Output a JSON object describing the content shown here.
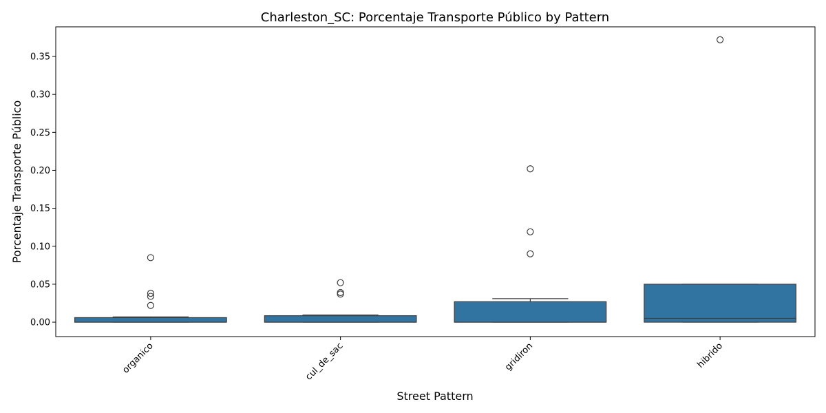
{
  "chart_data": {
    "type": "box",
    "title": "Charleston_SC: Porcentaje Transporte Público by Pattern",
    "xlabel": "Street Pattern",
    "ylabel": "Porcentaje Transporte Público",
    "ylim": [
      -0.019,
      0.389
    ],
    "yticks": [
      0.0,
      0.05,
      0.1,
      0.15,
      0.2,
      0.25,
      0.3,
      0.35
    ],
    "ytick_labels": [
      "0.00",
      "0.05",
      "0.10",
      "0.15",
      "0.20",
      "0.25",
      "0.30",
      "0.35"
    ],
    "box_color": "#3274a1",
    "edge_color": "#3d3d3d",
    "categories": [
      "organico",
      "cul_de_sac",
      "gridiron",
      "hibrido"
    ],
    "boxes": [
      {
        "category": "organico",
        "whisker_low": 0.0,
        "q1": 0.0,
        "median": 0.0,
        "q3": 0.006,
        "whisker_high": 0.007,
        "outliers": [
          0.085,
          0.038,
          0.034,
          0.022
        ]
      },
      {
        "category": "cul_de_sac",
        "whisker_low": 0.0,
        "q1": 0.0,
        "median": 0.0,
        "q3": 0.0085,
        "whisker_high": 0.0095,
        "outliers": [
          0.052,
          0.039,
          0.037
        ]
      },
      {
        "category": "gridiron",
        "whisker_low": 0.0,
        "q1": 0.0,
        "median": 0.0,
        "q3": 0.027,
        "whisker_high": 0.031,
        "outliers": [
          0.202,
          0.119,
          0.09
        ]
      },
      {
        "category": "hibrido",
        "whisker_low": 0.0,
        "q1": 0.0,
        "median": 0.005,
        "q3": 0.05,
        "whisker_high": 0.05,
        "outliers": [
          0.372
        ]
      }
    ]
  }
}
